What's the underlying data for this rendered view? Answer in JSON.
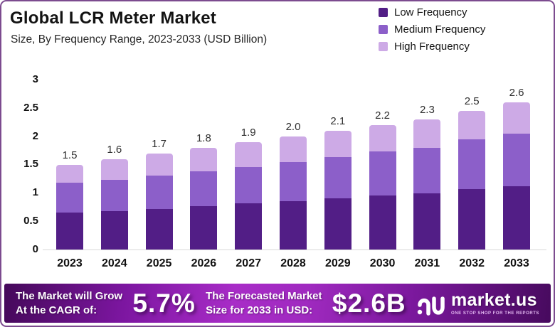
{
  "header": {
    "title": "Global LCR Meter Market",
    "subtitle": "Size, By Frequency Range, 2023-2033 (USD Billion)"
  },
  "legend": [
    {
      "label": "Low Frequency",
      "color": "#521e86"
    },
    {
      "label": "Medium Frequency",
      "color": "#8c5fc9"
    },
    {
      "label": "High Frequency",
      "color": "#cdaae6"
    }
  ],
  "chart_data": {
    "type": "bar",
    "stacked": true,
    "title": "Global LCR Meter Market",
    "xlabel": "",
    "ylabel": "USD Billion",
    "categories": [
      "2023",
      "2024",
      "2025",
      "2026",
      "2027",
      "2028",
      "2029",
      "2030",
      "2031",
      "2032",
      "2033"
    ],
    "series": [
      {
        "name": "Low Frequency",
        "color": "#521e86",
        "values": [
          0.65,
          0.68,
          0.72,
          0.76,
          0.81,
          0.85,
          0.9,
          0.95,
          0.99,
          1.07,
          1.12
        ]
      },
      {
        "name": "Medium Frequency",
        "color": "#8c5fc9",
        "values": [
          0.53,
          0.55,
          0.59,
          0.62,
          0.65,
          0.69,
          0.73,
          0.78,
          0.81,
          0.87,
          0.92
        ]
      },
      {
        "name": "High Frequency",
        "color": "#cdaae6",
        "values": [
          0.32,
          0.37,
          0.39,
          0.42,
          0.44,
          0.46,
          0.47,
          0.47,
          0.5,
          0.51,
          0.56
        ]
      }
    ],
    "totals": [
      1.5,
      1.6,
      1.7,
      1.8,
      1.9,
      2.0,
      2.1,
      2.2,
      2.3,
      2.5,
      2.6
    ],
    "total_labels": [
      "1.5",
      "1.6",
      "1.7",
      "1.8",
      "1.9",
      "2.0",
      "2.1",
      "2.2",
      "2.3",
      "2.5",
      "2.6"
    ],
    "y_ticks": [
      {
        "value": 3,
        "label": "3"
      },
      {
        "value": 2.5,
        "label": "2.5"
      },
      {
        "value": 2,
        "label": "2"
      },
      {
        "value": 1.5,
        "label": "1.5"
      },
      {
        "value": 1,
        "label": "1"
      },
      {
        "value": 0.5,
        "label": "0.5"
      },
      {
        "value": 0,
        "label": "0"
      }
    ],
    "ylim": [
      0,
      3
    ],
    "grid": false,
    "legend_position": "top-right"
  },
  "banner": {
    "cagr_label_line1": "The Market will Grow",
    "cagr_label_line2": "At the CAGR of:",
    "cagr_value": "5.7%",
    "forecast_label_line1": "The Forecasted Market",
    "forecast_label_line2": "Size for 2033 in USD:",
    "forecast_value": "$2.6B",
    "logo_text": "market.us",
    "logo_tagline": "ONE STOP SHOP FOR THE REPORTS"
  },
  "colors": {
    "frame_border": "#7c4b8f",
    "axis_line": "#d8d8d8",
    "banner_gradient": [
      "#45095a",
      "#7c16a0",
      "#a82cc7",
      "#7a189c",
      "#470a5e"
    ]
  }
}
